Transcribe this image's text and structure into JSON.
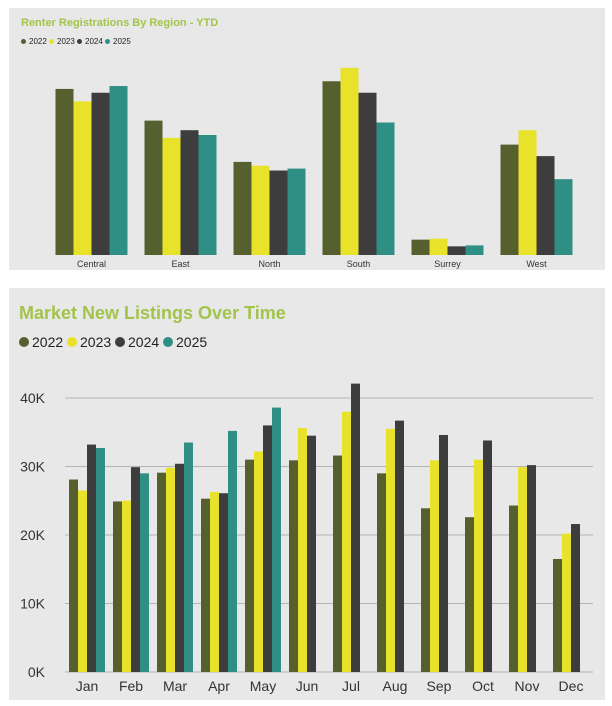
{
  "chart_data": [
    {
      "type": "bar",
      "title": "Renter Registrations By Region - YTD",
      "categories": [
        "Central",
        "East",
        "North",
        "South",
        "Surrey",
        "West"
      ],
      "series": [
        {
          "name": "2022",
          "color": "#56602f",
          "values": [
            173,
            140,
            97,
            181,
            16,
            115
          ]
        },
        {
          "name": "2023",
          "color": "#e9e22a",
          "values": [
            160,
            122,
            93,
            195,
            17,
            130
          ]
        },
        {
          "name": "2024",
          "color": "#3d3d3d",
          "values": [
            169,
            130,
            88,
            169,
            9,
            103
          ]
        },
        {
          "name": "2025",
          "color": "#2f8f84",
          "values": [
            176,
            125,
            90,
            138,
            10,
            79
          ]
        }
      ],
      "ylim": [
        0,
        200
      ],
      "xlabel": "",
      "ylabel": "",
      "grid": false,
      "yaxis_visible": false,
      "legend": "top-left"
    },
    {
      "type": "bar",
      "title": "Market New Listings Over Time",
      "categories": [
        "Jan",
        "Feb",
        "Mar",
        "Apr",
        "May",
        "Jun",
        "Jul",
        "Aug",
        "Sep",
        "Oct",
        "Nov",
        "Dec"
      ],
      "series": [
        {
          "name": "2022",
          "color": "#56602f",
          "values": [
            28100,
            24900,
            29100,
            25300,
            31000,
            30900,
            31600,
            29000,
            23900,
            22600,
            24300,
            16500
          ]
        },
        {
          "name": "2023",
          "color": "#e9e22a",
          "values": [
            26500,
            25000,
            29800,
            26300,
            32200,
            35600,
            38000,
            35500,
            30900,
            31000,
            29900,
            20200
          ]
        },
        {
          "name": "2024",
          "color": "#3d3d3d",
          "values": [
            33200,
            29900,
            30400,
            26100,
            36000,
            34500,
            42100,
            36700,
            34600,
            33800,
            30200,
            21600
          ]
        },
        {
          "name": "2025",
          "color": "#2f8f84",
          "values": [
            32700,
            29000,
            33500,
            35200,
            38600,
            null,
            null,
            null,
            null,
            null,
            null,
            null
          ]
        }
      ],
      "ylim": [
        0,
        40000
      ],
      "yticks": [
        0,
        10000,
        20000,
        30000,
        40000
      ],
      "ytick_labels": [
        "0K",
        "10K",
        "20K",
        "30K",
        "40K"
      ],
      "xlabel": "",
      "ylabel": "",
      "grid": true,
      "legend": "top-left"
    }
  ]
}
